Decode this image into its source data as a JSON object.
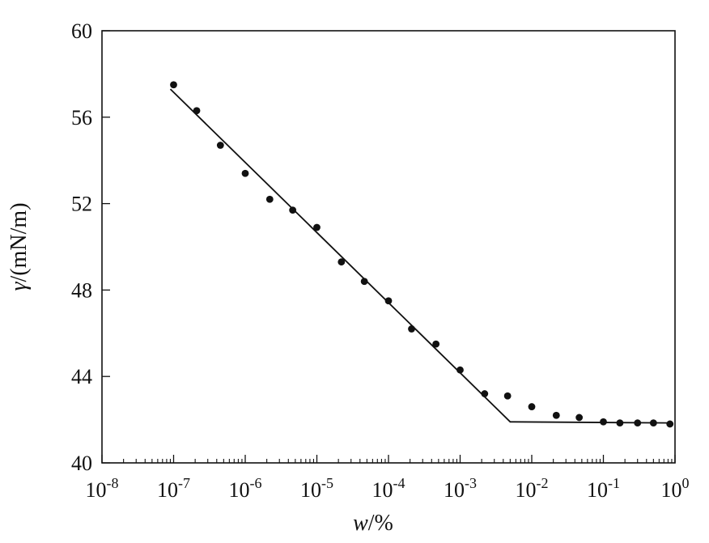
{
  "chart_data": {
    "type": "scatter",
    "x_scale": "log",
    "xlim": [
      1e-08,
      1
    ],
    "ylim": [
      40,
      60
    ],
    "x_tick_values": [
      1e-08,
      1e-07,
      1e-06,
      1e-05,
      0.0001,
      0.001,
      0.01,
      0.1,
      1
    ],
    "x_tick_labels": [
      {
        "base": "10",
        "exp": "-8"
      },
      {
        "base": "10",
        "exp": "-7"
      },
      {
        "base": "10",
        "exp": "-6"
      },
      {
        "base": "10",
        "exp": "-5"
      },
      {
        "base": "10",
        "exp": "-4"
      },
      {
        "base": "10",
        "exp": "-3"
      },
      {
        "base": "10",
        "exp": "-2"
      },
      {
        "base": "10",
        "exp": "-1"
      },
      {
        "base": "10",
        "exp": "0"
      }
    ],
    "y_ticks": [
      40,
      44,
      48,
      52,
      56,
      60
    ],
    "y_tick_labels": [
      "40",
      "44",
      "48",
      "52",
      "56",
      "60"
    ],
    "xlabel": {
      "var": "w",
      "unit": "/%"
    },
    "ylabel": {
      "var": "γ",
      "unit": "/(mN/m)"
    },
    "grid": false,
    "series": [
      {
        "kind": "points",
        "color": "#111111",
        "x": [
          1e-07,
          2.1e-07,
          4.5e-07,
          1e-06,
          2.2e-06,
          4.6e-06,
          1e-05,
          2.2e-05,
          4.6e-05,
          0.0001,
          0.00021,
          0.00046,
          0.001,
          0.0022,
          0.0046,
          0.01,
          0.022,
          0.046,
          0.1,
          0.17,
          0.3,
          0.5,
          0.85
        ],
        "y": [
          57.5,
          56.3,
          54.7,
          53.4,
          52.2,
          51.7,
          50.9,
          49.3,
          48.4,
          47.5,
          46.2,
          45.5,
          44.3,
          43.2,
          43.1,
          42.6,
          42.2,
          42.1,
          41.9,
          41.85,
          41.85,
          41.85,
          41.8
        ]
      },
      {
        "kind": "line",
        "color": "#111111",
        "x": [
          9e-08,
          0.005,
          0.85
        ],
        "y": [
          57.3,
          41.9,
          41.85
        ]
      }
    ]
  }
}
